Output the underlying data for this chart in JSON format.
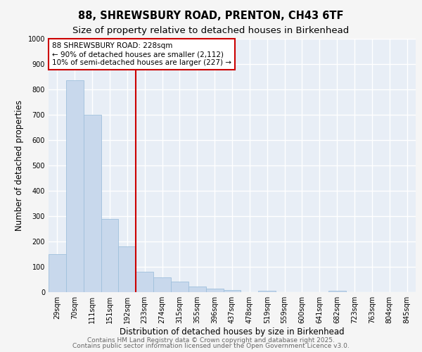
{
  "title1": "88, SHREWSBURY ROAD, PRENTON, CH43 6TF",
  "title2": "Size of property relative to detached houses in Birkenhead",
  "xlabel": "Distribution of detached houses by size in Birkenhead",
  "ylabel": "Number of detached properties",
  "categories": [
    "29sqm",
    "70sqm",
    "111sqm",
    "151sqm",
    "192sqm",
    "233sqm",
    "274sqm",
    "315sqm",
    "355sqm",
    "396sqm",
    "437sqm",
    "478sqm",
    "519sqm",
    "559sqm",
    "600sqm",
    "641sqm",
    "682sqm",
    "723sqm",
    "763sqm",
    "804sqm",
    "845sqm"
  ],
  "values": [
    150,
    835,
    700,
    290,
    180,
    80,
    57,
    43,
    22,
    13,
    8,
    0,
    5,
    0,
    0,
    0,
    5,
    0,
    0,
    0,
    0
  ],
  "bar_color": "#c8d8ec",
  "bar_edge_color": "#a0c0dc",
  "vline_x_index": 5,
  "vline_color": "#cc0000",
  "annotation_text": "88 SHREWSBURY ROAD: 228sqm\n← 90% of detached houses are smaller (2,112)\n10% of semi-detached houses are larger (227) →",
  "annotation_box_color": "#ffffff",
  "annotation_box_edge_color": "#cc0000",
  "ylim": [
    0,
    1000
  ],
  "yticks": [
    0,
    100,
    200,
    300,
    400,
    500,
    600,
    700,
    800,
    900,
    1000
  ],
  "footer1": "Contains HM Land Registry data © Crown copyright and database right 2025.",
  "footer2": "Contains public sector information licensed under the Open Government Licence v3.0.",
  "bg_color": "#f5f5f5",
  "plot_bg_color": "#e8eef6",
  "grid_color": "#ffffff",
  "title_fontsize": 10.5,
  "subtitle_fontsize": 9.5,
  "tick_fontsize": 7,
  "label_fontsize": 8.5,
  "footer_fontsize": 6.5,
  "footer_color": "#666666"
}
